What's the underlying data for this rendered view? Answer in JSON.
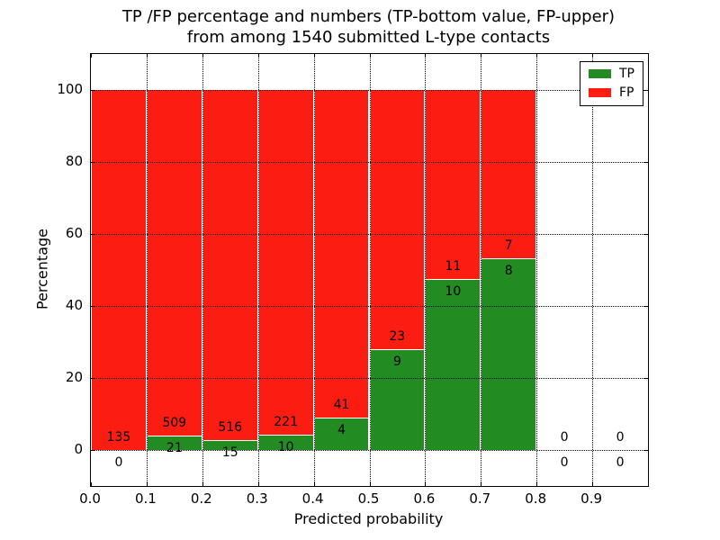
{
  "title": {
    "line1": "TP /FP percentage and numbers (TP-bottom value, FP-upper)",
    "line2": "from among 1540 submitted L-type contacts"
  },
  "axes": {
    "xlabel": "Predicted probability",
    "ylabel": "Percentage",
    "x_ticks": [
      "0.0",
      "0.1",
      "0.2",
      "0.3",
      "0.4",
      "0.5",
      "0.6",
      "0.7",
      "0.8",
      "0.9"
    ],
    "y_ticks": [
      "0",
      "20",
      "40",
      "60",
      "80",
      "100"
    ],
    "y_tick_values": [
      0,
      20,
      40,
      60,
      80,
      100
    ],
    "xlim": [
      0.0,
      1.0
    ],
    "ylim": [
      -10,
      110
    ]
  },
  "legend": {
    "items": [
      {
        "label": "TP",
        "color": "#228b22"
      },
      {
        "label": "FP",
        "color": "#fb1d12"
      }
    ]
  },
  "chart_data": {
    "type": "bar",
    "stacked": true,
    "normalized": "each bin scaled so TP%+FP% = 100",
    "title": "TP /FP percentage and numbers (TP-bottom value, FP-upper) from among 1540 submitted L-type contacts",
    "xlabel": "Predicted probability",
    "ylabel": "Percentage",
    "xlim": [
      0.0,
      1.0
    ],
    "ylim": [
      -10,
      110
    ],
    "grid": "dotted black, on",
    "legend_position": "upper right",
    "total_contacts": 1540,
    "colors": {
      "tp": "#228b22",
      "fp": "#fb1d12"
    },
    "bins": [
      {
        "x_range": [
          0.0,
          0.1
        ],
        "tp": 0,
        "fp": 135,
        "tp_pct": 0.0,
        "fp_pct": 100.0
      },
      {
        "x_range": [
          0.1,
          0.2
        ],
        "tp": 21,
        "fp": 509,
        "tp_pct": 3.96,
        "fp_pct": 96.04
      },
      {
        "x_range": [
          0.2,
          0.3
        ],
        "tp": 15,
        "fp": 516,
        "tp_pct": 2.82,
        "fp_pct": 97.18
      },
      {
        "x_range": [
          0.3,
          0.4
        ],
        "tp": 10,
        "fp": 221,
        "tp_pct": 4.33,
        "fp_pct": 95.67
      },
      {
        "x_range": [
          0.4,
          0.5
        ],
        "tp": 4,
        "fp": 41,
        "tp_pct": 8.89,
        "fp_pct": 91.11
      },
      {
        "x_range": [
          0.5,
          0.6
        ],
        "tp": 9,
        "fp": 23,
        "tp_pct": 28.13,
        "fp_pct": 71.87
      },
      {
        "x_range": [
          0.6,
          0.7
        ],
        "tp": 10,
        "fp": 11,
        "tp_pct": 47.62,
        "fp_pct": 52.38
      },
      {
        "x_range": [
          0.7,
          0.8
        ],
        "tp": 8,
        "fp": 7,
        "tp_pct": 53.33,
        "fp_pct": 46.67
      },
      {
        "x_range": [
          0.8,
          0.9
        ],
        "tp": 0,
        "fp": 0,
        "tp_pct": 0.0,
        "fp_pct": 0.0
      },
      {
        "x_range": [
          0.9,
          1.0
        ],
        "tp": 0,
        "fp": 0,
        "tp_pct": 0.0,
        "fp_pct": 0.0
      }
    ]
  }
}
